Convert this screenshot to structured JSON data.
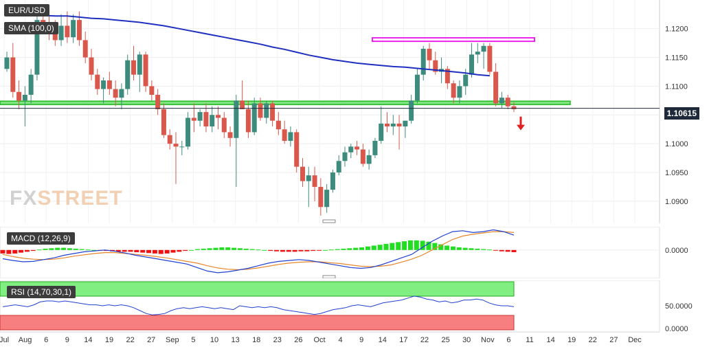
{
  "chart_data": [
    {
      "type": "candlestick",
      "symbol": "EUR/USD",
      "indicator_label": "SMA (100,0)",
      "last_price": "1.10615",
      "y_ticks": [
        "1.1200",
        "1.1150",
        "1.1100",
        "1.1050",
        "1.1000",
        "1.0950",
        "1.0900"
      ],
      "ylim": [
        1.087,
        1.1245
      ],
      "x_ticks": [
        "Jul",
        "Aug",
        "6",
        "9",
        "14",
        "19",
        "22",
        "27",
        "Sep",
        "5",
        "10",
        "13",
        "18",
        "23",
        "26",
        "Oct",
        "4",
        "9",
        "14",
        "17",
        "22",
        "25",
        "30",
        "Nov",
        "6",
        "11",
        "14",
        "19",
        "22",
        "27",
        "Dec"
      ],
      "resistance_zone": [
        1.1178,
        1.1184
      ],
      "support_zone": [
        1.1068,
        1.1074
      ],
      "candles": [
        [
          1.113,
          1.116,
          1.1125,
          1.115
        ],
        [
          1.115,
          1.1175,
          1.108,
          1.109
        ],
        [
          1.109,
          1.111,
          1.106,
          1.1075
        ],
        [
          1.1075,
          1.11,
          1.103,
          1.1085
        ],
        [
          1.1085,
          1.113,
          1.107,
          1.112
        ],
        [
          1.112,
          1.1225,
          1.111,
          1.1215
        ],
        [
          1.1215,
          1.124,
          1.119,
          1.1205
        ],
        [
          1.1205,
          1.123,
          1.118,
          1.1195
        ],
        [
          1.1195,
          1.1215,
          1.117,
          1.118
        ],
        [
          1.118,
          1.1225,
          1.117,
          1.1205
        ],
        [
          1.1205,
          1.123,
          1.1175,
          1.1185
        ],
        [
          1.1185,
          1.1225,
          1.1175,
          1.1215
        ],
        [
          1.1215,
          1.123,
          1.117,
          1.118
        ],
        [
          1.118,
          1.1195,
          1.114,
          1.115
        ],
        [
          1.115,
          1.1165,
          1.111,
          1.112
        ],
        [
          1.112,
          1.113,
          1.1085,
          1.1095
        ],
        [
          1.1095,
          1.1115,
          1.107,
          1.111
        ],
        [
          1.111,
          1.1125,
          1.1085,
          1.1095
        ],
        [
          1.1095,
          1.111,
          1.1065,
          1.108
        ],
        [
          1.108,
          1.1105,
          1.106,
          1.1095
        ],
        [
          1.1095,
          1.1155,
          1.1085,
          1.1145
        ],
        [
          1.1145,
          1.117,
          1.111,
          1.112
        ],
        [
          1.112,
          1.116,
          1.109,
          1.1155
        ],
        [
          1.1155,
          1.116,
          1.109,
          1.11
        ],
        [
          1.11,
          1.111,
          1.1075,
          1.1085
        ],
        [
          1.1085,
          1.1095,
          1.105,
          1.106
        ],
        [
          1.106,
          1.107,
          1.101,
          1.1015
        ],
        [
          1.1015,
          1.1025,
          1.099,
          1.1
        ],
        [
          1.1,
          1.102,
          1.093,
          1.0995
        ],
        [
          1.0995,
          1.1005,
          1.098,
          1.0995
        ],
        [
          1.0995,
          1.1055,
          1.099,
          1.1045
        ],
        [
          1.1045,
          1.107,
          1.102,
          1.104
        ],
        [
          1.104,
          1.106,
          1.103,
          1.1055
        ],
        [
          1.1055,
          1.107,
          1.102,
          1.103
        ],
        [
          1.103,
          1.1065,
          1.102,
          1.105
        ],
        [
          1.105,
          1.1065,
          1.1025,
          1.1045
        ],
        [
          1.1045,
          1.1055,
          1.101,
          1.102
        ],
        [
          1.102,
          1.103,
          1.0995,
          1.101
        ],
        [
          1.101,
          1.1085,
          1.0925,
          1.1075
        ],
        [
          1.1075,
          1.111,
          1.106,
          1.106
        ],
        [
          1.106,
          1.1075,
          1.101,
          1.102
        ],
        [
          1.102,
          1.108,
          1.1015,
          1.107
        ],
        [
          1.107,
          1.108,
          1.104,
          1.1045
        ],
        [
          1.1045,
          1.1075,
          1.1035,
          1.107
        ],
        [
          1.107,
          1.1075,
          1.103,
          1.104
        ],
        [
          1.104,
          1.1055,
          1.1015,
          1.1025
        ],
        [
          1.1025,
          1.104,
          1.1,
          1.1005
        ],
        [
          1.1005,
          1.103,
          1.0995,
          1.102
        ],
        [
          1.102,
          1.1025,
          1.095,
          1.096
        ],
        [
          1.096,
          1.0975,
          1.0925,
          1.0935
        ],
        [
          1.0935,
          1.096,
          1.089,
          1.0945
        ],
        [
          1.0945,
          1.096,
          1.09,
          1.0925
        ],
        [
          1.0925,
          1.094,
          1.0875,
          1.089
        ],
        [
          1.089,
          1.093,
          1.088,
          1.092
        ],
        [
          1.092,
          1.0955,
          1.0915,
          1.095
        ],
        [
          1.095,
          1.098,
          1.0945,
          1.097
        ],
        [
          1.097,
          1.0995,
          1.096,
          1.0985
        ],
        [
          1.0985,
          1.1,
          1.0975,
          1.0995
        ],
        [
          1.0995,
          1.1005,
          1.098,
          1.099
        ],
        [
          1.099,
          1.1,
          1.096,
          1.0965
        ],
        [
          1.0965,
          1.099,
          1.0955,
          1.098
        ],
        [
          1.098,
          1.101,
          1.0975,
          1.1005
        ],
        [
          1.1005,
          1.1065,
          1.1,
          1.1035
        ],
        [
          1.1035,
          1.1055,
          1.102,
          1.103
        ],
        [
          1.103,
          1.105,
          1.1015,
          1.1035
        ],
        [
          1.1035,
          1.105,
          1.099,
          1.103
        ],
        [
          1.103,
          1.104,
          1.101,
          1.104
        ],
        [
          1.104,
          1.1085,
          1.1035,
          1.1075
        ],
        [
          1.1075,
          1.113,
          1.107,
          1.112
        ],
        [
          1.112,
          1.117,
          1.111,
          1.1165
        ],
        [
          1.1165,
          1.1175,
          1.113,
          1.1145
        ],
        [
          1.1145,
          1.116,
          1.112,
          1.1125
        ],
        [
          1.1125,
          1.115,
          1.1105,
          1.113
        ],
        [
          1.113,
          1.1135,
          1.1095,
          1.1105
        ],
        [
          1.1105,
          1.111,
          1.107,
          1.108
        ],
        [
          1.108,
          1.111,
          1.107,
          1.11
        ],
        [
          1.11,
          1.113,
          1.1085,
          1.112
        ],
        [
          1.112,
          1.1175,
          1.1115,
          1.1155
        ],
        [
          1.1155,
          1.1175,
          1.114,
          1.116
        ],
        [
          1.116,
          1.1175,
          1.113,
          1.117
        ],
        [
          1.117,
          1.1175,
          1.112,
          1.1125
        ],
        [
          1.1125,
          1.114,
          1.1065,
          1.107
        ],
        [
          1.107,
          1.109,
          1.1062,
          1.108
        ],
        [
          1.108,
          1.1085,
          1.106,
          1.1065
        ],
        [
          1.1065,
          1.1072,
          1.1055,
          1.106
        ]
      ],
      "sma_100": [
        1.1225,
        1.1225,
        1.1225,
        1.1223,
        1.1222,
        1.1222,
        1.122,
        1.1218,
        1.1217,
        1.1215,
        1.1213,
        1.1211,
        1.1208,
        1.1205,
        1.1201,
        1.1197,
        1.1193,
        1.1189,
        1.1185,
        1.1181,
        1.1177,
        1.1173,
        1.1168,
        1.1164,
        1.1159,
        1.1154,
        1.115,
        1.1146,
        1.1143,
        1.114,
        1.1138,
        1.1136,
        1.1134,
        1.1133,
        1.1131,
        1.1129,
        1.1127,
        1.1125,
        1.1123,
        1.112,
        1.1118
      ],
      "sma_100_start_index": 0,
      "sma_100_step": 2
    },
    {
      "type": "bar+line",
      "indicator_label": "MACD (12,26,9)",
      "y_ticks": [
        "0.0000"
      ],
      "histogram": [
        -0.0008,
        -0.0009,
        -0.0008,
        -0.0006,
        -0.0004,
        -0.0002,
        0.0001,
        0.0003,
        0.0004,
        0.0005,
        0.0005,
        0.0004,
        0.0003,
        0.0002,
        0.0001,
        0.0,
        -0.0001,
        -0.0002,
        -0.0003,
        -0.0004,
        -0.0004,
        -0.0004,
        -0.0005,
        -0.0006,
        -0.0007,
        -0.0008,
        -0.0009,
        -0.0008,
        -0.0006,
        -0.0004,
        -0.0002,
        0.0,
        0.0002,
        0.0003,
        0.0004,
        0.0005,
        0.0006,
        0.0006,
        0.0005,
        0.0004,
        0.0003,
        0.0002,
        0.0001,
        0.0,
        -0.0002,
        -0.0003,
        -0.0004,
        -0.0004,
        -0.0004,
        -0.0003,
        -0.0003,
        -0.0002,
        -0.0001,
        0.0,
        0.0001,
        0.0002,
        0.0003,
        0.0004,
        0.0005,
        0.0006,
        0.0008,
        0.001,
        0.0012,
        0.0014,
        0.0016,
        0.0018,
        0.002,
        0.0022,
        0.0022,
        0.0021,
        0.0019,
        0.0016,
        0.0013,
        0.001,
        0.0008,
        0.0006,
        0.0005,
        0.0004,
        0.0003,
        0.0002,
        0.0001,
        -0.0001,
        -0.0003,
        -0.0004,
        -0.0005
      ],
      "macd_line": [
        -0.002,
        -0.0024,
        -0.0027,
        -0.0026,
        -0.0022,
        -0.0018,
        -0.0012,
        -0.0008,
        -0.0004,
        -0.0002,
        0.0,
        -0.0003,
        -0.0007,
        -0.0012,
        -0.0016,
        -0.002,
        -0.0024,
        -0.0028,
        -0.0032,
        -0.004,
        -0.0048,
        -0.0052,
        -0.005,
        -0.0046,
        -0.0042,
        -0.0036,
        -0.003,
        -0.0026,
        -0.0024,
        -0.0022,
        -0.0024,
        -0.0028,
        -0.0032,
        -0.0036,
        -0.004,
        -0.0042,
        -0.004,
        -0.0034,
        -0.0026,
        -0.0018,
        -0.001,
        0.0005,
        0.002,
        0.0032,
        0.0042,
        0.0044,
        0.004,
        0.0042,
        0.0046,
        0.0042,
        0.0034
      ],
      "signal_line": [
        -0.001,
        -0.0015,
        -0.0019,
        -0.0021,
        -0.0022,
        -0.0021,
        -0.0018,
        -0.0014,
        -0.0011,
        -0.0008,
        -0.0006,
        -0.0006,
        -0.0008,
        -0.001,
        -0.0012,
        -0.0015,
        -0.0018,
        -0.0022,
        -0.0026,
        -0.003,
        -0.0036,
        -0.0041,
        -0.0044,
        -0.0045,
        -0.0044,
        -0.0041,
        -0.0037,
        -0.0033,
        -0.003,
        -0.0028,
        -0.0027,
        -0.0027,
        -0.0029,
        -0.0031,
        -0.0034,
        -0.0037,
        -0.0038,
        -0.0037,
        -0.0034,
        -0.0028,
        -0.0021,
        -0.0012,
        0.0,
        0.0012,
        0.0024,
        0.0032,
        0.0036,
        0.0039,
        0.0042,
        0.0042,
        0.004
      ],
      "ylim": [
        -0.006,
        0.005
      ]
    },
    {
      "type": "line",
      "indicator_label": "RSI (14,70,30,1)",
      "y_ticks": [
        "50.0000",
        "0.0000"
      ],
      "overbought": 70,
      "oversold": 30,
      "ylim": [
        0,
        100
      ],
      "rsi": [
        48,
        50,
        52,
        50,
        48,
        52,
        58,
        60,
        60,
        58,
        60,
        58,
        56,
        54,
        52,
        52,
        50,
        52,
        50,
        52,
        50,
        46,
        40,
        34,
        31,
        32,
        34,
        40,
        44,
        46,
        44,
        46,
        48,
        46,
        44,
        46,
        44,
        42,
        50,
        48,
        46,
        48,
        46,
        48,
        46,
        42,
        40,
        38,
        36,
        34,
        32,
        34,
        38,
        42,
        44,
        46,
        50,
        52,
        50,
        48,
        52,
        56,
        58,
        60,
        62,
        66,
        70,
        68,
        64,
        62,
        58,
        60,
        56,
        58,
        62,
        62,
        64,
        62,
        56,
        52,
        50,
        50,
        48
      ]
    }
  ]
}
